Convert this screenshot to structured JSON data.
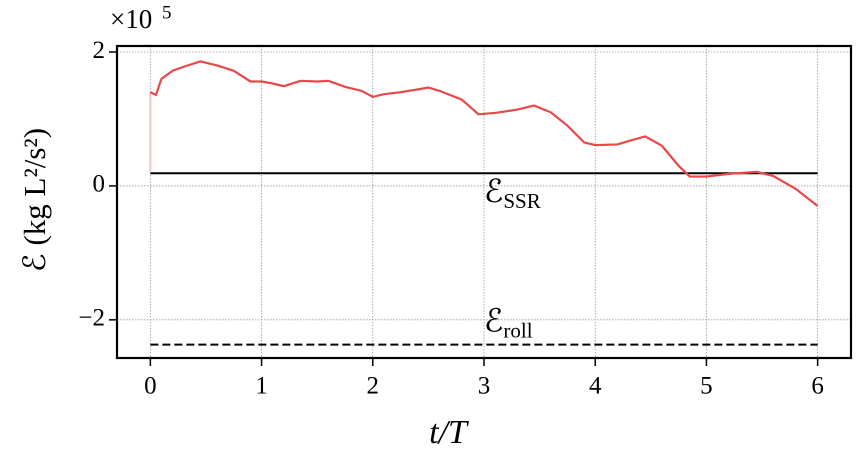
{
  "chart_data": {
    "type": "line",
    "xlabel": "t/T",
    "ylabel": "ℰ  (kg L²/s²)",
    "y_multiplier": "×10",
    "y_multiplier_exp": "5",
    "xlim": [
      -0.3,
      6.3
    ],
    "ylim": [
      -2.57,
      2.09
    ],
    "xticks": [
      0,
      1,
      2,
      3,
      4,
      5,
      6
    ],
    "yticks": [
      {
        "value": -2,
        "label": "−2"
      },
      0,
      2
    ],
    "grid": true,
    "series": [
      {
        "color": "#f8c8c8",
        "x": [
          0,
          0
        ],
        "values": [
          0.2,
          1.4
        ]
      },
      {
        "color": "#e84848",
        "x": [
          0.0,
          0.05,
          0.1,
          0.2,
          0.3,
          0.45,
          0.6,
          0.75,
          0.9,
          1.0,
          1.1,
          1.2,
          1.35,
          1.5,
          1.6,
          1.75,
          1.9,
          2.0,
          2.1,
          2.25,
          2.4,
          2.5,
          2.6,
          2.8,
          2.95,
          3.1,
          3.3,
          3.45,
          3.6,
          3.75,
          3.9,
          4.0,
          4.2,
          4.3,
          4.45,
          4.6,
          4.75,
          4.85,
          5.0,
          5.2,
          5.45,
          5.6,
          5.8,
          6.0
        ],
        "values": [
          1.4,
          1.36,
          1.6,
          1.72,
          1.78,
          1.86,
          1.8,
          1.72,
          1.56,
          1.56,
          1.53,
          1.49,
          1.57,
          1.56,
          1.57,
          1.48,
          1.42,
          1.33,
          1.37,
          1.4,
          1.44,
          1.47,
          1.42,
          1.29,
          1.07,
          1.09,
          1.14,
          1.2,
          1.1,
          0.9,
          0.65,
          0.61,
          0.62,
          0.67,
          0.74,
          0.6,
          0.3,
          0.14,
          0.14,
          0.18,
          0.21,
          0.15,
          -0.04,
          -0.3
        ]
      }
    ],
    "hlines": [
      {
        "value": 0.19,
        "style": "solid",
        "color": "#000000",
        "label": "ℰ",
        "label_sub": "SSR",
        "label_side": "below"
      },
      {
        "value": -2.37,
        "style": "dashed",
        "color": "#000000",
        "label": "ℰ",
        "label_sub": "roll",
        "label_side": "above"
      }
    ]
  }
}
